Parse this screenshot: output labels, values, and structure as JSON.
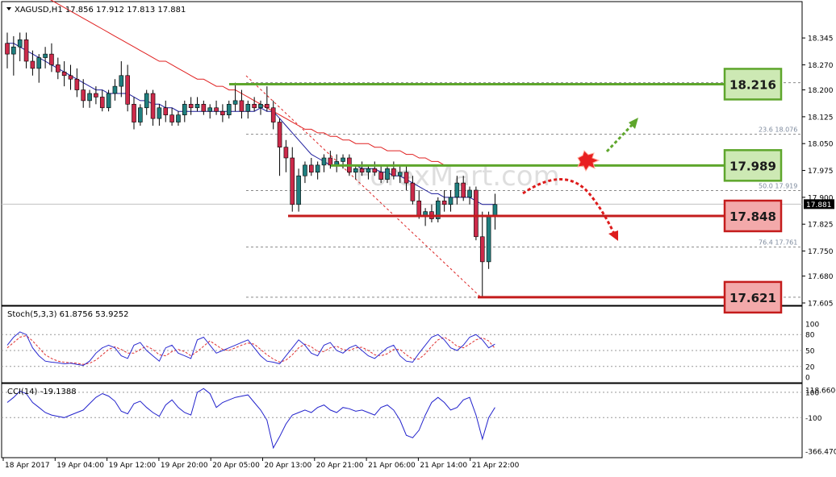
{
  "header": {
    "symbol_info": "XAGUSD,H1  17.856 17.912 17.813 17.881",
    "stoch_info": "Stoch(5,3,3) 61.8756 53.9252",
    "cci_info": "CCI(14) -19.1388"
  },
  "watermark": "ForexMart.com",
  "colors": {
    "bull": "#1f7f7f",
    "bear": "#cc2a4a",
    "ma_fast": "#1c1c9c",
    "ma_slow": "#e02020",
    "green": "#5ea62c",
    "red": "#c41c1c",
    "green_box": "#cde9b4",
    "red_box": "#f3a9aa",
    "stoch_main": "#2a2ad0",
    "stoch_signal": "#e03030",
    "cci": "#2222cc"
  },
  "price_axis": {
    "min": 17.605,
    "max": 18.37,
    "ticks": [
      "18.345",
      "18.270",
      "18.200",
      "18.125",
      "18.050",
      "17.975",
      "17.900",
      "17.825",
      "17.750",
      "17.680",
      "17.605"
    ],
    "current": "17.881"
  },
  "stoch_axis": {
    "ticks": [
      "100",
      "80",
      "50",
      "20",
      "0"
    ]
  },
  "cci_axis": {
    "ticks": [
      "118.6606",
      "100",
      "-100",
      "-366.4701"
    ]
  },
  "time_axis": {
    "labels": [
      "18 Apr 2017",
      "19 Apr 04:00",
      "19 Apr 12:00",
      "19 Apr 20:00",
      "20 Apr 05:00",
      "20 Apr 13:00",
      "20 Apr 21:00",
      "21 Apr 06:00",
      "21 Apr 14:00",
      "21 Apr 22:00"
    ]
  },
  "levels": [
    {
      "label": "18.216",
      "type": "resistance",
      "value": 18.216
    },
    {
      "label": "17.989",
      "type": "resistance",
      "value": 17.989
    },
    {
      "label": "17.848",
      "type": "support",
      "value": 17.848
    },
    {
      "label": "17.621",
      "type": "support",
      "value": 17.621
    }
  ],
  "fib_levels": [
    {
      "label": "23.6  18.076",
      "value": 18.076
    },
    {
      "label": "50.0  17.919",
      "value": 17.919
    },
    {
      "label": "76.4  17.761",
      "value": 17.761
    }
  ],
  "chart_data": {
    "type": "candlestick",
    "title": "XAGUSD,H1",
    "timeframe": "H1",
    "ylim": [
      17.605,
      18.37
    ],
    "ohlc": [
      [
        18.33,
        18.36,
        18.26,
        18.3
      ],
      [
        18.3,
        18.35,
        18.24,
        18.32
      ],
      [
        18.32,
        18.36,
        18.28,
        18.34
      ],
      [
        18.34,
        18.36,
        18.26,
        18.28
      ],
      [
        18.28,
        18.31,
        18.24,
        18.26
      ],
      [
        18.26,
        18.3,
        18.22,
        18.29
      ],
      [
        18.29,
        18.32,
        18.26,
        18.3
      ],
      [
        18.3,
        18.33,
        18.25,
        18.27
      ],
      [
        18.27,
        18.29,
        18.23,
        18.25
      ],
      [
        18.25,
        18.28,
        18.21,
        18.24
      ],
      [
        18.24,
        18.27,
        18.2,
        18.23
      ],
      [
        18.23,
        18.26,
        18.18,
        18.2
      ],
      [
        18.2,
        18.23,
        18.15,
        18.17
      ],
      [
        18.17,
        18.2,
        18.15,
        18.19
      ],
      [
        18.19,
        18.21,
        18.16,
        18.18
      ],
      [
        18.18,
        18.2,
        18.14,
        18.15
      ],
      [
        18.15,
        18.2,
        18.14,
        18.19
      ],
      [
        18.19,
        18.23,
        18.17,
        18.21
      ],
      [
        18.21,
        18.28,
        18.18,
        18.24
      ],
      [
        18.24,
        18.27,
        18.14,
        18.16
      ],
      [
        18.16,
        18.18,
        18.09,
        18.11
      ],
      [
        18.11,
        18.16,
        18.1,
        18.15
      ],
      [
        18.15,
        18.2,
        18.13,
        18.19
      ],
      [
        18.19,
        18.2,
        18.1,
        18.12
      ],
      [
        18.12,
        18.16,
        18.1,
        18.15
      ],
      [
        18.15,
        18.17,
        18.11,
        18.13
      ],
      [
        18.13,
        18.15,
        18.1,
        18.11
      ],
      [
        18.11,
        18.14,
        18.1,
        18.13
      ],
      [
        18.13,
        18.17,
        18.11,
        18.16
      ],
      [
        18.16,
        18.18,
        18.13,
        18.15
      ],
      [
        18.15,
        18.18,
        18.14,
        18.16
      ],
      [
        18.16,
        18.17,
        18.13,
        18.14
      ],
      [
        18.14,
        18.16,
        18.12,
        18.15
      ],
      [
        18.15,
        18.17,
        18.13,
        18.14
      ],
      [
        18.14,
        18.16,
        18.11,
        18.13
      ],
      [
        18.13,
        18.17,
        18.12,
        18.16
      ],
      [
        18.16,
        18.22,
        18.14,
        18.17
      ],
      [
        18.17,
        18.2,
        18.12,
        18.14
      ],
      [
        18.14,
        18.17,
        18.12,
        18.16
      ],
      [
        18.16,
        18.18,
        18.14,
        18.15
      ],
      [
        18.15,
        18.17,
        18.13,
        18.16
      ],
      [
        18.16,
        18.21,
        18.14,
        18.15
      ],
      [
        18.15,
        18.17,
        18.09,
        18.11
      ],
      [
        18.11,
        18.12,
        17.96,
        18.04
      ],
      [
        18.04,
        18.06,
        17.97,
        18.01
      ],
      [
        18.01,
        18.04,
        17.86,
        17.88
      ],
      [
        17.88,
        17.98,
        17.86,
        17.96
      ],
      [
        17.96,
        18.0,
        17.94,
        17.99
      ],
      [
        17.99,
        18.01,
        17.96,
        17.97
      ],
      [
        17.97,
        18.0,
        17.95,
        17.99
      ],
      [
        17.99,
        18.02,
        17.97,
        18.01
      ],
      [
        18.01,
        18.03,
        17.98,
        17.99
      ],
      [
        17.99,
        18.02,
        17.97,
        18.0
      ],
      [
        18.0,
        18.02,
        17.98,
        18.01
      ],
      [
        18.01,
        18.02,
        17.96,
        17.97
      ],
      [
        17.97,
        17.99,
        17.95,
        17.98
      ],
      [
        17.98,
        18.0,
        17.96,
        17.97
      ],
      [
        17.97,
        17.99,
        17.95,
        17.98
      ],
      [
        17.98,
        18.0,
        17.96,
        17.97
      ],
      [
        17.97,
        17.99,
        17.94,
        17.95
      ],
      [
        17.95,
        17.99,
        17.94,
        17.98
      ],
      [
        17.98,
        18.0,
        17.95,
        17.96
      ],
      [
        17.96,
        17.99,
        17.94,
        17.97
      ],
      [
        17.97,
        17.99,
        17.92,
        17.94
      ],
      [
        17.94,
        17.96,
        17.88,
        17.89
      ],
      [
        17.89,
        17.92,
        17.84,
        17.85
      ],
      [
        17.85,
        17.87,
        17.82,
        17.86
      ],
      [
        17.86,
        17.88,
        17.83,
        17.84
      ],
      [
        17.84,
        17.9,
        17.83,
        17.89
      ],
      [
        17.89,
        17.92,
        17.86,
        17.88
      ],
      [
        17.88,
        17.92,
        17.86,
        17.9
      ],
      [
        17.9,
        17.96,
        17.88,
        17.94
      ],
      [
        17.94,
        17.96,
        17.89,
        17.9
      ],
      [
        17.9,
        17.93,
        17.88,
        17.92
      ],
      [
        17.92,
        17.93,
        17.78,
        17.79
      ],
      [
        17.79,
        17.86,
        17.62,
        17.72
      ],
      [
        17.72,
        17.86,
        17.7,
        17.85
      ],
      [
        17.85,
        17.91,
        17.81,
        17.88
      ]
    ],
    "moving_averages": [
      {
        "name": "fast",
        "values": [
          18.33,
          18.33,
          18.32,
          18.31,
          18.3,
          18.29,
          18.28,
          18.27,
          18.26,
          18.25,
          18.24,
          18.23,
          18.22,
          18.21,
          18.2,
          18.2,
          18.19,
          18.19,
          18.19,
          18.19,
          18.18,
          18.17,
          18.17,
          18.16,
          18.16,
          18.15,
          18.15,
          18.14,
          18.14,
          18.14,
          18.14,
          18.14,
          18.14,
          18.14,
          18.14,
          18.14,
          18.14,
          18.14,
          18.14,
          18.14,
          18.15,
          18.14,
          18.14,
          18.12,
          18.1,
          18.08,
          18.06,
          18.04,
          18.02,
          18.01,
          18.0,
          17.99,
          17.99,
          17.99,
          17.99,
          17.99,
          17.98,
          17.98,
          17.98,
          17.97,
          17.97,
          17.96,
          17.96,
          17.95,
          17.94,
          17.93,
          17.92,
          17.91,
          17.91,
          17.9,
          17.9,
          17.9,
          17.9,
          17.9,
          17.89,
          17.88,
          17.88,
          17.88
        ]
      },
      {
        "name": "slow",
        "values": [
          18.52,
          18.51,
          18.5,
          18.49,
          18.48,
          18.47,
          18.46,
          18.45,
          18.44,
          18.43,
          18.42,
          18.41,
          18.4,
          18.39,
          18.38,
          18.37,
          18.36,
          18.35,
          18.34,
          18.33,
          18.32,
          18.31,
          18.3,
          18.29,
          18.28,
          18.28,
          18.27,
          18.26,
          18.25,
          18.24,
          18.23,
          18.23,
          18.22,
          18.21,
          18.21,
          18.2,
          18.2,
          18.19,
          18.18,
          18.17,
          18.16,
          18.15,
          18.14,
          18.13,
          18.12,
          18.11,
          18.1,
          18.09,
          18.09,
          18.08,
          18.08,
          18.07,
          18.07,
          18.06,
          18.06,
          18.05,
          18.05,
          18.05,
          18.04,
          18.04,
          18.03,
          18.03,
          18.03,
          18.02,
          18.02,
          18.01,
          18.01,
          18.0,
          18.0,
          17.99,
          17.99,
          17.99,
          17.99,
          17.99,
          17.99,
          17.99,
          17.99,
          17.99
        ]
      }
    ],
    "stochastic": {
      "main": [
        60,
        75,
        85,
        80,
        55,
        40,
        30,
        28,
        27,
        25,
        26,
        24,
        22,
        30,
        45,
        55,
        60,
        55,
        40,
        35,
        60,
        65,
        50,
        40,
        30,
        55,
        60,
        45,
        40,
        35,
        70,
        75,
        60,
        45,
        50,
        55,
        60,
        65,
        70,
        55,
        40,
        30,
        28,
        25,
        40,
        55,
        70,
        60,
        45,
        40,
        60,
        65,
        50,
        45,
        55,
        60,
        50,
        40,
        35,
        45,
        55,
        60,
        40,
        30,
        28,
        45,
        60,
        75,
        80,
        70,
        55,
        50,
        60,
        75,
        80,
        70,
        55,
        62
      ],
      "signal": [
        55,
        65,
        75,
        78,
        68,
        55,
        42,
        35,
        30,
        28,
        27,
        26,
        24,
        26,
        32,
        42,
        52,
        57,
        52,
        45,
        45,
        52,
        58,
        52,
        42,
        40,
        48,
        52,
        48,
        40,
        48,
        58,
        68,
        60,
        52,
        50,
        55,
        60,
        64,
        62,
        52,
        42,
        34,
        28,
        32,
        42,
        55,
        62,
        57,
        48,
        48,
        55,
        58,
        52,
        50,
        55,
        56,
        50,
        42,
        40,
        44,
        52,
        52,
        42,
        34,
        34,
        44,
        58,
        70,
        75,
        68,
        58,
        55,
        62,
        70,
        74,
        68,
        54
      ],
      "levels": [
        80,
        50,
        20
      ]
    },
    "cci": {
      "values": [
        20,
        60,
        110,
        90,
        20,
        -20,
        -60,
        -80,
        -90,
        -100,
        -80,
        -60,
        -40,
        10,
        60,
        90,
        70,
        30,
        -50,
        -70,
        10,
        30,
        -20,
        -60,
        -90,
        0,
        40,
        -20,
        -60,
        -80,
        100,
        130,
        90,
        -20,
        20,
        40,
        60,
        70,
        80,
        20,
        -40,
        -120,
        -340,
        -250,
        -150,
        -80,
        -60,
        -40,
        -60,
        -20,
        0,
        -40,
        -60,
        -20,
        -30,
        -50,
        -40,
        -60,
        -80,
        -20,
        0,
        -40,
        -120,
        -240,
        -260,
        -200,
        -80,
        20,
        60,
        20,
        -40,
        -20,
        40,
        60,
        -80,
        -270,
        -100,
        -20
      ],
      "levels": [
        100,
        -100
      ]
    }
  }
}
